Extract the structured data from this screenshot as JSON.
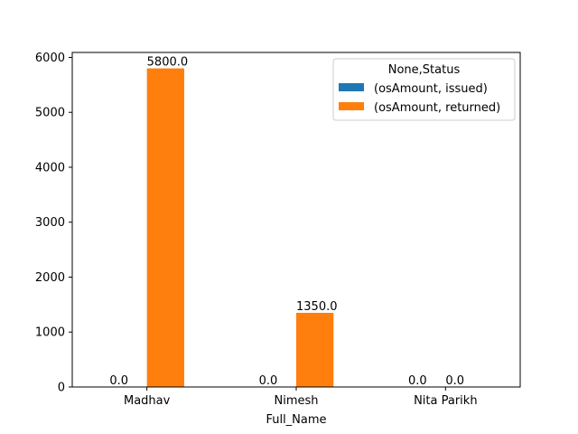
{
  "chart_data": {
    "type": "bar",
    "title": "",
    "xlabel": "Full_Name",
    "ylabel": "",
    "categories": [
      "Madhav",
      "Nimesh",
      "Nita Parikh"
    ],
    "series": [
      {
        "name": "(osAmount, issued)",
        "values": [
          0.0,
          0.0,
          0.0
        ],
        "color": "#1f77b4"
      },
      {
        "name": "(osAmount, returned)",
        "values": [
          5800.0,
          1350.0,
          0.0
        ],
        "color": "#ff7f0e"
      }
    ],
    "data_labels": [
      [
        "0.0",
        "0.0",
        "0.0"
      ],
      [
        "5800.0",
        "1350.0",
        "0.0"
      ]
    ],
    "ylim": [
      0,
      6090
    ],
    "yticks": [
      0,
      1000,
      2000,
      3000,
      4000,
      5000,
      6000
    ],
    "ytick_labels": [
      "0",
      "1000",
      "2000",
      "3000",
      "4000",
      "5000",
      "6000"
    ],
    "grid": false,
    "legend": {
      "title": "None,Status",
      "placement": "top-right"
    }
  }
}
